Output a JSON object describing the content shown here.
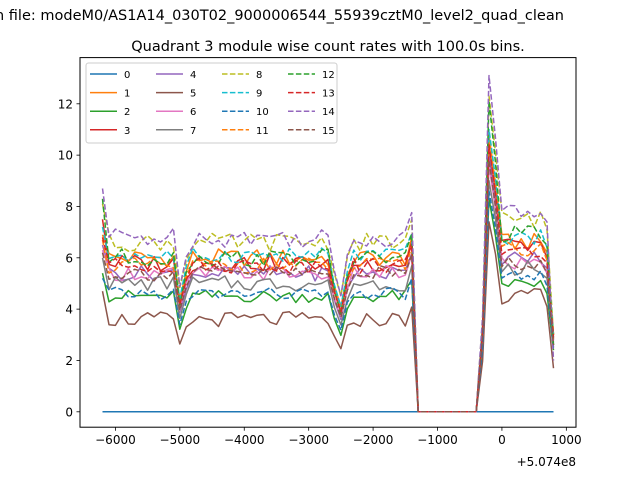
{
  "figure": {
    "suptitle": "n file: modeM0/AS1A14_030T02_9000006544_55939cztM0_level2_quad_clean",
    "title": "Quadrant 3 module wise count rates with 100.0s bins.",
    "offset_label": "+5.074e8"
  },
  "chart_data": {
    "type": "line",
    "title": "Quadrant 3 module wise count rates with 100.0s bins.",
    "xlabel": "",
    "ylabel": "",
    "x_offset": 507400000,
    "xlim": [
      -6550,
      1150
    ],
    "ylim": [
      -0.6,
      13.8
    ],
    "xticks": [
      -6000,
      -5000,
      -4000,
      -3000,
      -2000,
      -1000,
      0,
      1000
    ],
    "xtick_labels": [
      "−6000",
      "−5000",
      "−4000",
      "−3000",
      "−2000",
      "−1000",
      "0",
      "1000"
    ],
    "yticks": [
      0,
      2,
      4,
      6,
      8,
      10,
      12
    ],
    "ytick_labels": [
      "0",
      "2",
      "4",
      "6",
      "8",
      "10",
      "12"
    ],
    "grid": false,
    "legend_position": "upper-left",
    "legend_columns": 4,
    "series": [
      {
        "name": "0",
        "color": "#1f77b4",
        "dashed": false,
        "base": 0,
        "amp": 0,
        "dip": 0
      },
      {
        "name": "1",
        "color": "#ff7f0e",
        "dashed": false,
        "base": 6.0,
        "amp": 0.35,
        "dip": 2.0,
        "start": 6.9,
        "peak": 10.8,
        "post": 6.6,
        "end": 3.0
      },
      {
        "name": "2",
        "color": "#2ca02c",
        "dashed": false,
        "base": 4.5,
        "amp": 0.25,
        "dip": 1.6,
        "start": 5.4,
        "peak": 8.3,
        "post": 5.0,
        "end": 2.4
      },
      {
        "name": "3",
        "color": "#d62728",
        "dashed": false,
        "base": 5.8,
        "amp": 0.35,
        "dip": 2.0,
        "start": 7.5,
        "peak": 10.3,
        "post": 6.4,
        "end": 3.0
      },
      {
        "name": "4",
        "color": "#9467bd",
        "dashed": false,
        "base": 5.4,
        "amp": 0.3,
        "dip": 1.9,
        "start": 6.5,
        "peak": 10.0,
        "post": 6.0,
        "end": 2.8
      },
      {
        "name": "5",
        "color": "#8c564b",
        "dashed": false,
        "base": 3.6,
        "amp": 0.3,
        "dip": 1.2,
        "start": 4.7,
        "peak": 7.4,
        "post": 4.5,
        "end": 1.7
      },
      {
        "name": "6",
        "color": "#e377c2",
        "dashed": false,
        "base": 5.4,
        "amp": 0.3,
        "dip": 1.8,
        "start": 6.3,
        "peak": 9.6,
        "post": 5.8,
        "end": 2.7
      },
      {
        "name": "7",
        "color": "#7f7f7f",
        "dashed": false,
        "base": 5.0,
        "amp": 0.3,
        "dip": 1.7,
        "start": 6.0,
        "peak": 9.0,
        "post": 5.6,
        "end": 2.5
      },
      {
        "name": "8",
        "color": "#bcbd22",
        "dashed": true,
        "base": 6.6,
        "amp": 0.35,
        "dip": 2.2,
        "start": 8.1,
        "peak": 12.3,
        "post": 7.5,
        "end": 3.0
      },
      {
        "name": "9",
        "color": "#17becf",
        "dashed": true,
        "base": 6.1,
        "amp": 0.3,
        "dip": 2.1,
        "start": 7.2,
        "peak": 11.0,
        "post": 6.8,
        "end": 2.9
      },
      {
        "name": "10",
        "color": "#1f77b4",
        "dashed": true,
        "base": 4.6,
        "amp": 0.25,
        "dip": 1.5,
        "start": 5.2,
        "peak": 8.6,
        "post": 5.3,
        "end": 2.4
      },
      {
        "name": "11",
        "color": "#ff7f0e",
        "dashed": true,
        "base": 5.7,
        "amp": 0.3,
        "dip": 1.9,
        "start": 6.7,
        "peak": 10.5,
        "post": 6.3,
        "end": 2.8
      },
      {
        "name": "12",
        "color": "#2ca02c",
        "dashed": true,
        "base": 6.0,
        "amp": 0.35,
        "dip": 2.3,
        "start": 8.3,
        "peak": 12.1,
        "post": 6.9,
        "end": 2.6
      },
      {
        "name": "13",
        "color": "#d62728",
        "dashed": true,
        "base": 5.7,
        "amp": 0.3,
        "dip": 1.9,
        "start": 6.8,
        "peak": 10.4,
        "post": 6.2,
        "end": 2.9
      },
      {
        "name": "14",
        "color": "#9467bd",
        "dashed": true,
        "base": 6.8,
        "amp": 0.4,
        "dip": 2.4,
        "start": 8.7,
        "peak": 13.1,
        "post": 7.8,
        "end": 2.0
      },
      {
        "name": "15",
        "color": "#8c564b",
        "dashed": true,
        "base": 5.4,
        "amp": 0.3,
        "dip": 1.8,
        "start": 6.2,
        "peak": 9.8,
        "post": 5.8,
        "end": 2.6
      }
    ]
  }
}
